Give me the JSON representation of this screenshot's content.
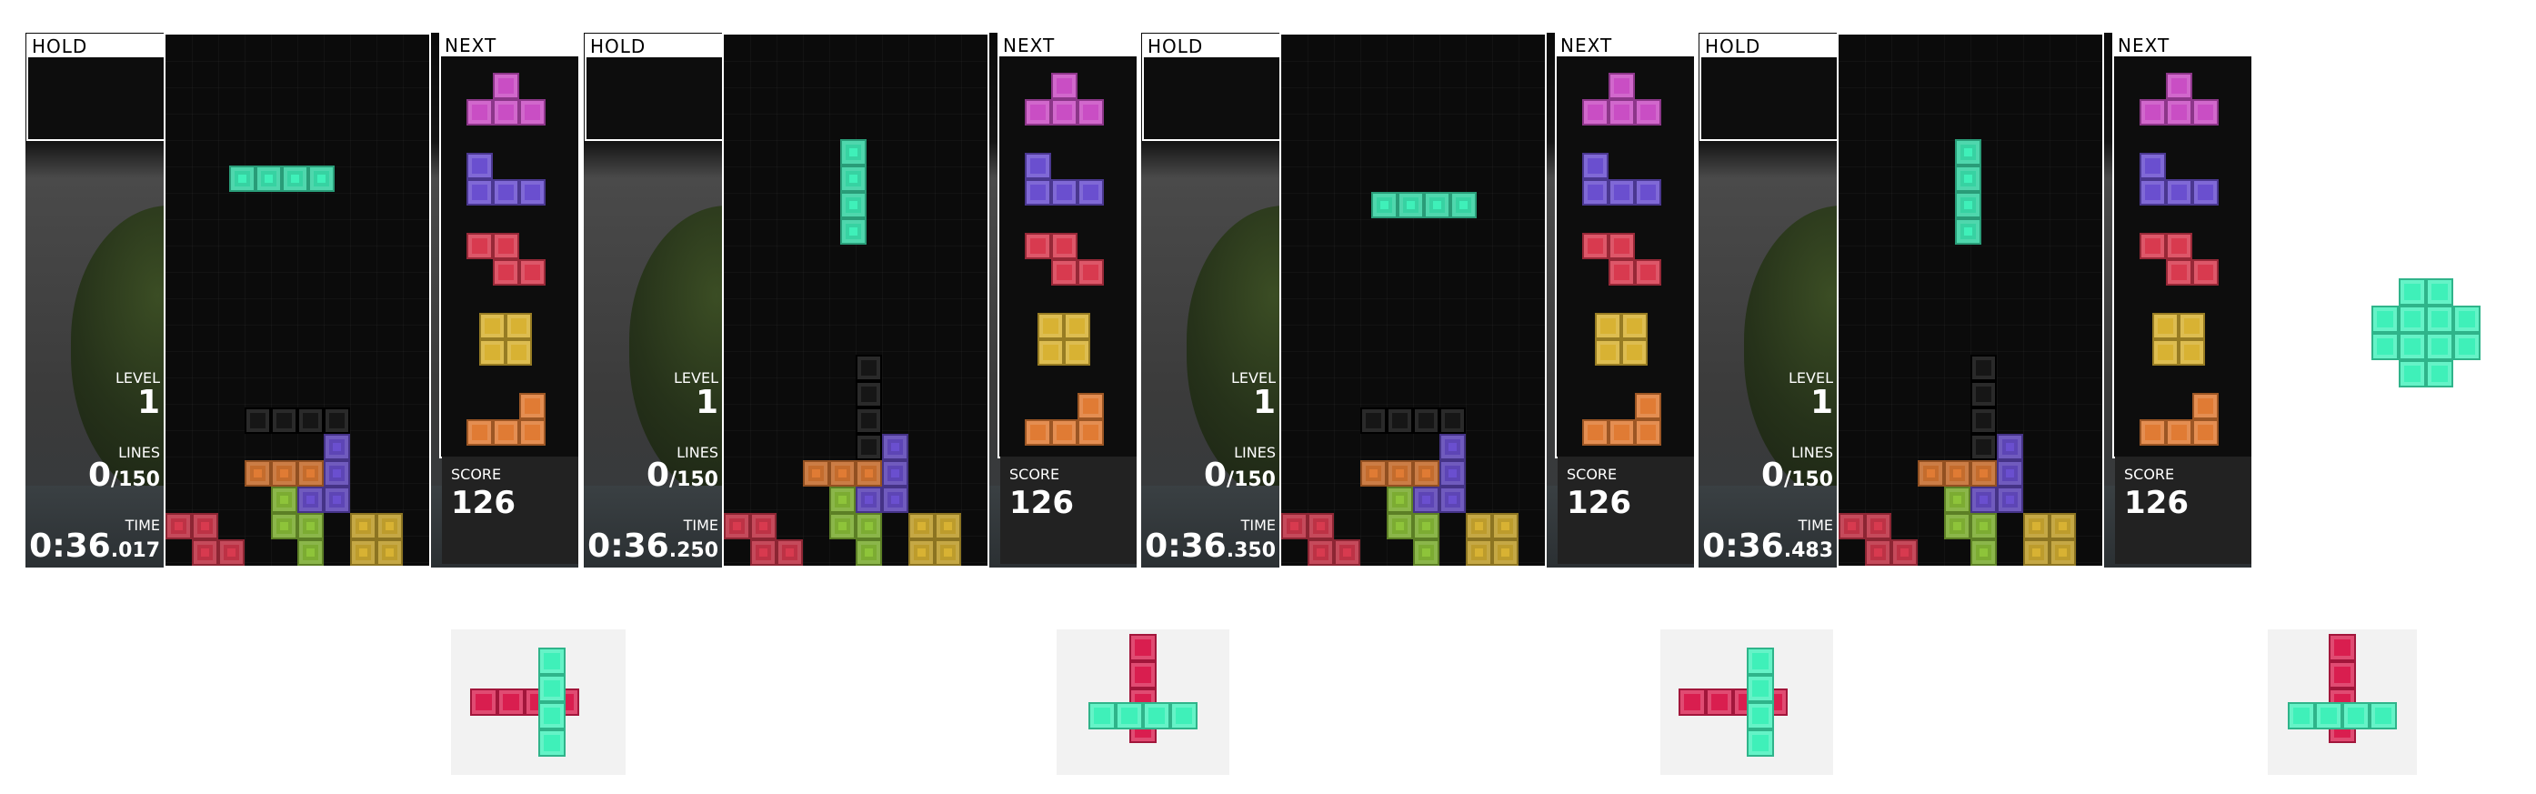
{
  "labels": {
    "hold": "HOLD",
    "next": "NEXT",
    "level": "LEVEL",
    "lines": "LINES",
    "time": "TIME",
    "score": "SCORE"
  },
  "colors": {
    "I": "#3ff0b9",
    "T": "#c94ec4",
    "J": "#6a4fcf",
    "Z": "#d83a4f",
    "O": "#d8b233",
    "L": "#e07b34",
    "S": "#8ec43a",
    "red": "#d91e4f",
    "ghost": "#161616"
  },
  "frames": [
    {
      "level": "1",
      "lines": "0",
      "lines_total": "/150",
      "time_main": "0:36",
      "time_ms": ".017",
      "score": "126",
      "active_piece": {
        "type": "I",
        "orientation": "horizontal",
        "row": 6,
        "col": 2
      }
    },
    {
      "level": "1",
      "lines": "0",
      "lines_total": "/150",
      "time_main": "0:36",
      "time_ms": ".250",
      "score": "126",
      "active_piece": {
        "type": "I",
        "orientation": "vertical",
        "row": 5,
        "col": 4
      }
    },
    {
      "level": "1",
      "lines": "0",
      "lines_total": "/150",
      "time_main": "0:36",
      "time_ms": ".350",
      "score": "126",
      "active_piece": {
        "type": "I",
        "orientation": "horizontal",
        "row": 7,
        "col": 3
      }
    },
    {
      "level": "1",
      "lines": "0",
      "lines_total": "/150",
      "time_main": "0:36",
      "time_ms": ".483",
      "score": "126",
      "active_piece": {
        "type": "I",
        "orientation": "vertical",
        "row": 5,
        "col": 4
      }
    }
  ],
  "next_queue": [
    "T",
    "J",
    "Z",
    "O",
    "L"
  ],
  "standalone_shape": {
    "color": "I"
  },
  "thumbnails": [
    {
      "primary": "I",
      "primary_orientation": "vertical",
      "secondary": "red",
      "secondary_orientation": "horizontal"
    },
    {
      "primary": "I",
      "primary_orientation": "horizontal",
      "secondary": "red",
      "secondary_orientation": "vertical"
    },
    {
      "primary": "I",
      "primary_orientation": "vertical",
      "secondary": "red",
      "secondary_orientation": "horizontal"
    },
    {
      "primary": "I",
      "primary_orientation": "horizontal",
      "secondary": "red",
      "secondary_orientation": "vertical"
    }
  ]
}
